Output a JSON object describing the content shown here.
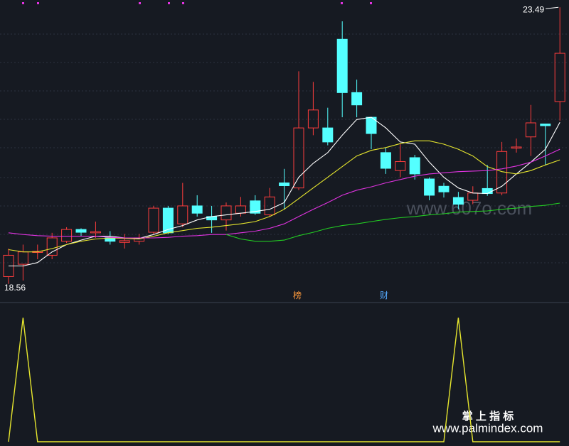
{
  "chart_data": [
    {
      "type": "candlestick",
      "ylim": [
        18.43,
        23.62
      ],
      "up_color": "#ff3d3d",
      "down_color": "#54ffff",
      "open": [
        18.69,
        18.91,
        19.12,
        19.07,
        19.32,
        19.53,
        19.47,
        19.38,
        19.3,
        19.32,
        19.48,
        19.91,
        19.63,
        19.95,
        19.76,
        19.7,
        19.82,
        20.04,
        19.79,
        20.36,
        20.27,
        21.34,
        21.34,
        22.92,
        21.97,
        21.53,
        20.9,
        20.58,
        20.81,
        20.43,
        20.3,
        20.1,
        20.05,
        20.26,
        20.18,
        20.98,
        21.18,
        21.41,
        21.81
      ],
      "high": [
        19.19,
        19.26,
        19.26,
        19.47,
        19.57,
        19.55,
        19.67,
        19.5,
        19.45,
        19.45,
        19.95,
        19.95,
        20.36,
        20.14,
        19.95,
        20.01,
        20.11,
        20.14,
        20.27,
        20.61,
        22.35,
        22.16,
        21.7,
        23.24,
        22.2,
        21.53,
        20.99,
        21.05,
        20.86,
        20.46,
        20.36,
        20.2,
        20.3,
        20.68,
        21.09,
        21.15,
        21.75,
        21.41,
        23.49
      ],
      "low": [
        18.56,
        18.62,
        19.0,
        19.0,
        19.29,
        19.41,
        19.38,
        19.26,
        19.19,
        19.26,
        19.45,
        19.45,
        19.57,
        19.76,
        19.47,
        19.51,
        19.76,
        19.79,
        19.76,
        19.89,
        20.23,
        21.21,
        21.03,
        21.53,
        21.53,
        20.96,
        20.52,
        20.46,
        20.42,
        20.05,
        20.1,
        19.89,
        19.98,
        20.13,
        20.14,
        20.9,
        20.84,
        20.68,
        21.47
      ],
      "close": [
        19.07,
        19.13,
        19.14,
        19.38,
        19.53,
        19.48,
        19.49,
        19.32,
        19.33,
        19.38,
        19.91,
        19.47,
        19.95,
        19.82,
        19.7,
        19.95,
        19.95,
        19.82,
        20.11,
        20.31,
        21.34,
        21.66,
        21.09,
        21.97,
        21.75,
        21.24,
        20.62,
        20.74,
        20.52,
        20.14,
        20.2,
        19.98,
        20.18,
        20.17,
        20.92,
        21.0,
        21.43,
        21.38,
        22.67
      ],
      "series": [
        {
          "color": "#ffffff",
          "values": [
            18.88,
            18.88,
            18.94,
            19.13,
            19.26,
            19.34,
            19.41,
            19.41,
            19.38,
            19.37,
            19.44,
            19.53,
            19.6,
            19.7,
            19.76,
            19.79,
            19.82,
            19.85,
            19.89,
            20.01,
            20.46,
            20.71,
            20.9,
            21.21,
            21.49,
            21.53,
            21.34,
            21.09,
            21.05,
            20.73,
            20.46,
            20.27,
            20.18,
            20.17,
            20.3,
            20.52,
            20.73,
            20.96,
            21.44
          ]
        },
        {
          "color": "#e6e62e",
          "values": [
            19.17,
            19.13,
            19.13,
            19.19,
            19.26,
            19.32,
            19.36,
            19.38,
            19.37,
            19.36,
            19.41,
            19.47,
            19.51,
            19.55,
            19.57,
            19.6,
            19.63,
            19.67,
            19.76,
            19.89,
            20.08,
            20.27,
            20.46,
            20.65,
            20.84,
            20.94,
            20.99,
            21.06,
            21.11,
            21.11,
            21.05,
            20.96,
            20.84,
            20.65,
            20.56,
            20.52,
            20.58,
            20.68,
            20.77
          ]
        },
        {
          "color": "#e033e0",
          "values": [
            19.47,
            19.44,
            19.42,
            19.41,
            19.41,
            19.41,
            19.41,
            19.39,
            19.38,
            19.38,
            19.38,
            19.39,
            19.41,
            19.42,
            19.44,
            19.44,
            19.47,
            19.5,
            19.55,
            19.63,
            19.76,
            19.89,
            20.01,
            20.14,
            20.23,
            20.29,
            20.36,
            20.42,
            20.48,
            20.52,
            20.54,
            20.56,
            20.57,
            20.58,
            20.61,
            20.66,
            20.73,
            20.84,
            20.96
          ]
        },
        {
          "color": "#22cc22",
          "values": [
            null,
            null,
            null,
            null,
            null,
            null,
            null,
            null,
            null,
            null,
            null,
            null,
            null,
            null,
            null,
            19.44,
            19.36,
            19.32,
            19.32,
            19.34,
            19.42,
            19.48,
            19.55,
            19.6,
            19.63,
            19.67,
            19.71,
            19.74,
            19.76,
            19.79,
            19.81,
            19.84,
            19.85,
            19.86,
            19.89,
            19.91,
            19.94,
            19.96,
            20.0
          ]
        }
      ],
      "annotations": [
        "23.49",
        "18.56",
        "榜",
        "财"
      ]
    },
    {
      "type": "line",
      "ylim": [
        0,
        1.1
      ],
      "color": "#e6e62e",
      "values": [
        0,
        1,
        0,
        0,
        0,
        0,
        0,
        0,
        0,
        0,
        0,
        0,
        0,
        0,
        0,
        0,
        0,
        0,
        0,
        0,
        0,
        0,
        0,
        0,
        0,
        0,
        0,
        0,
        0,
        0,
        0,
        1,
        0,
        0,
        0,
        0,
        0,
        0,
        0
      ]
    }
  ],
  "watermarks": [
    "www.607o.com",
    "掌 上 指 标",
    "www.palmindex.com"
  ]
}
